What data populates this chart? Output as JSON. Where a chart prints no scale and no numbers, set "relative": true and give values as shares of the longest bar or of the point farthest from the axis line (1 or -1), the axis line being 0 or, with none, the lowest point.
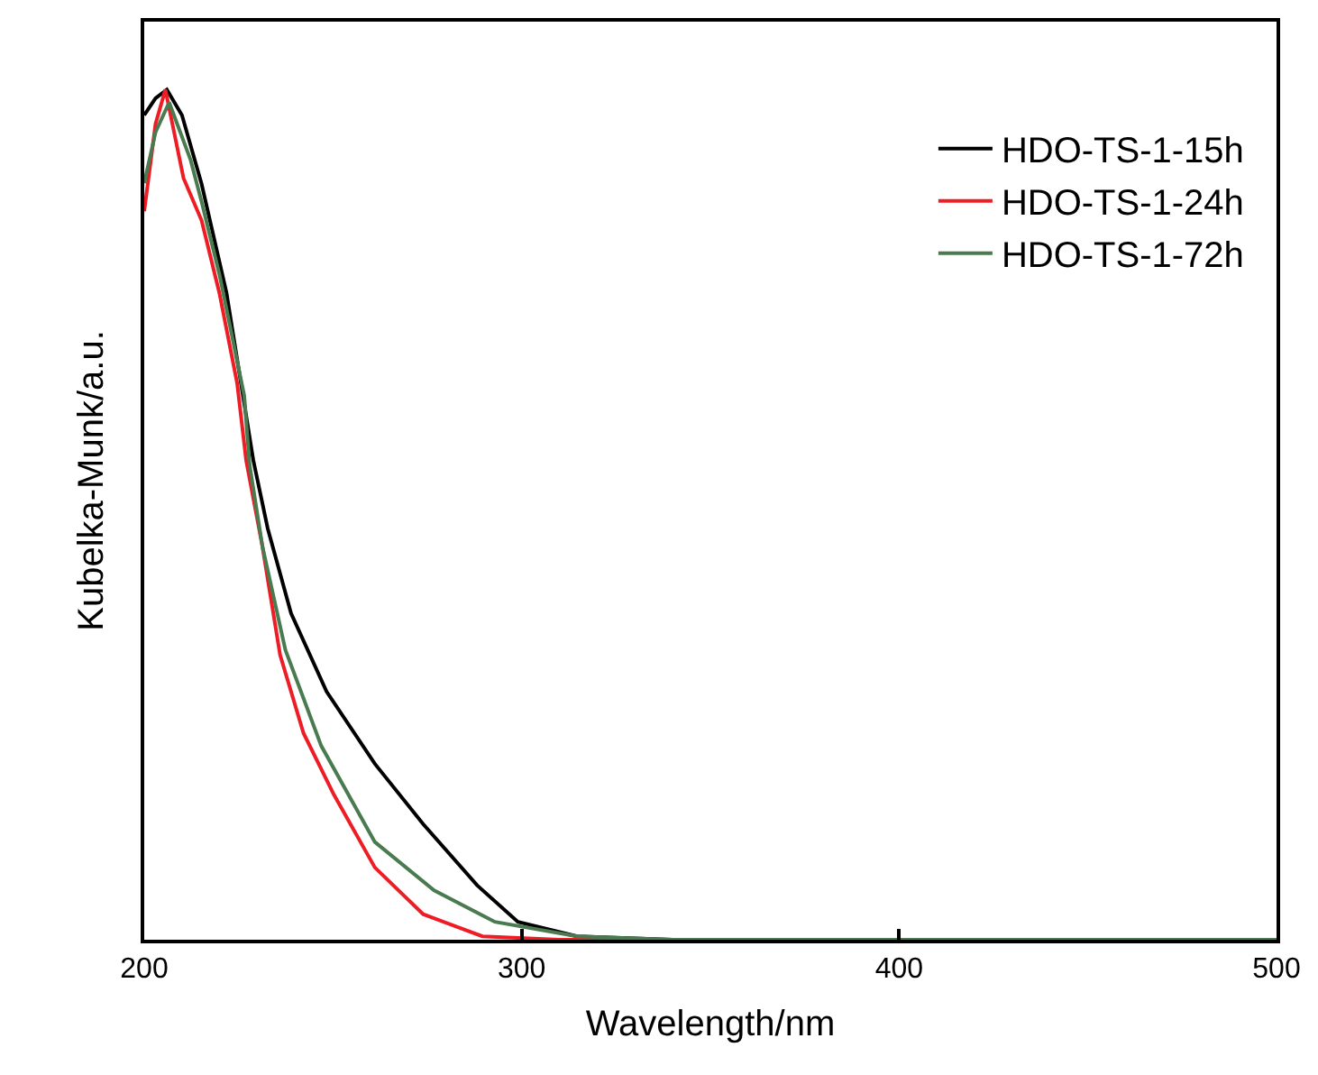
{
  "chart_data": {
    "type": "line",
    "xlabel": "Wavelength/nm",
    "ylabel": "Kubelka-Munk/a.u.",
    "relative": true,
    "xlim": [
      200,
      500
    ],
    "xticks": [
      200,
      300,
      400,
      500
    ],
    "tick_labels": "x",
    "legend": "top right",
    "marker": "none",
    "line_style": "solid",
    "series": [
      {
        "name": "HDO-TS-1-15h",
        "color": "#000000",
        "x": [
          200,
          203,
          206,
          210,
          215.2,
          221.8,
          228.9,
          232.7,
          238.9,
          248.3,
          261.1,
          273.9,
          288.2,
          299,
          314.7,
          340,
          500
        ],
        "values": [
          0.97,
          0.99,
          1.0,
          0.97,
          0.889,
          0.761,
          0.564,
          0.484,
          0.384,
          0.292,
          0.207,
          0.136,
          0.064,
          0.021,
          0.004,
          0,
          0
        ]
      },
      {
        "name": "HDO-TS-1-24h",
        "color": "#ee1c24",
        "x": [
          200,
          203,
          205.6,
          210.4,
          215.2,
          219.9,
          224.6,
          227,
          231.3,
          236,
          242.2,
          250.2,
          261.1,
          273.9,
          289.6,
          310,
          500
        ],
        "values": [
          0.857,
          0.96,
          1.0,
          0.896,
          0.846,
          0.761,
          0.655,
          0.564,
          0.463,
          0.335,
          0.243,
          0.171,
          0.085,
          0.03,
          0.004,
          0,
          0
        ]
      },
      {
        "name": "HDO-TS-1-72h",
        "color": "#4a7a4f",
        "x": [
          200,
          203,
          206.6,
          212.3,
          215.2,
          219.9,
          226.5,
          227.9,
          231.3,
          237.4,
          246.9,
          261.1,
          276.8,
          292.9,
          314.7,
          340,
          500
        ],
        "values": [
          0.89,
          0.95,
          0.985,
          0.917,
          0.868,
          0.783,
          0.64,
          0.559,
          0.463,
          0.341,
          0.228,
          0.115,
          0.058,
          0.021,
          0.004,
          0,
          0
        ]
      }
    ]
  }
}
